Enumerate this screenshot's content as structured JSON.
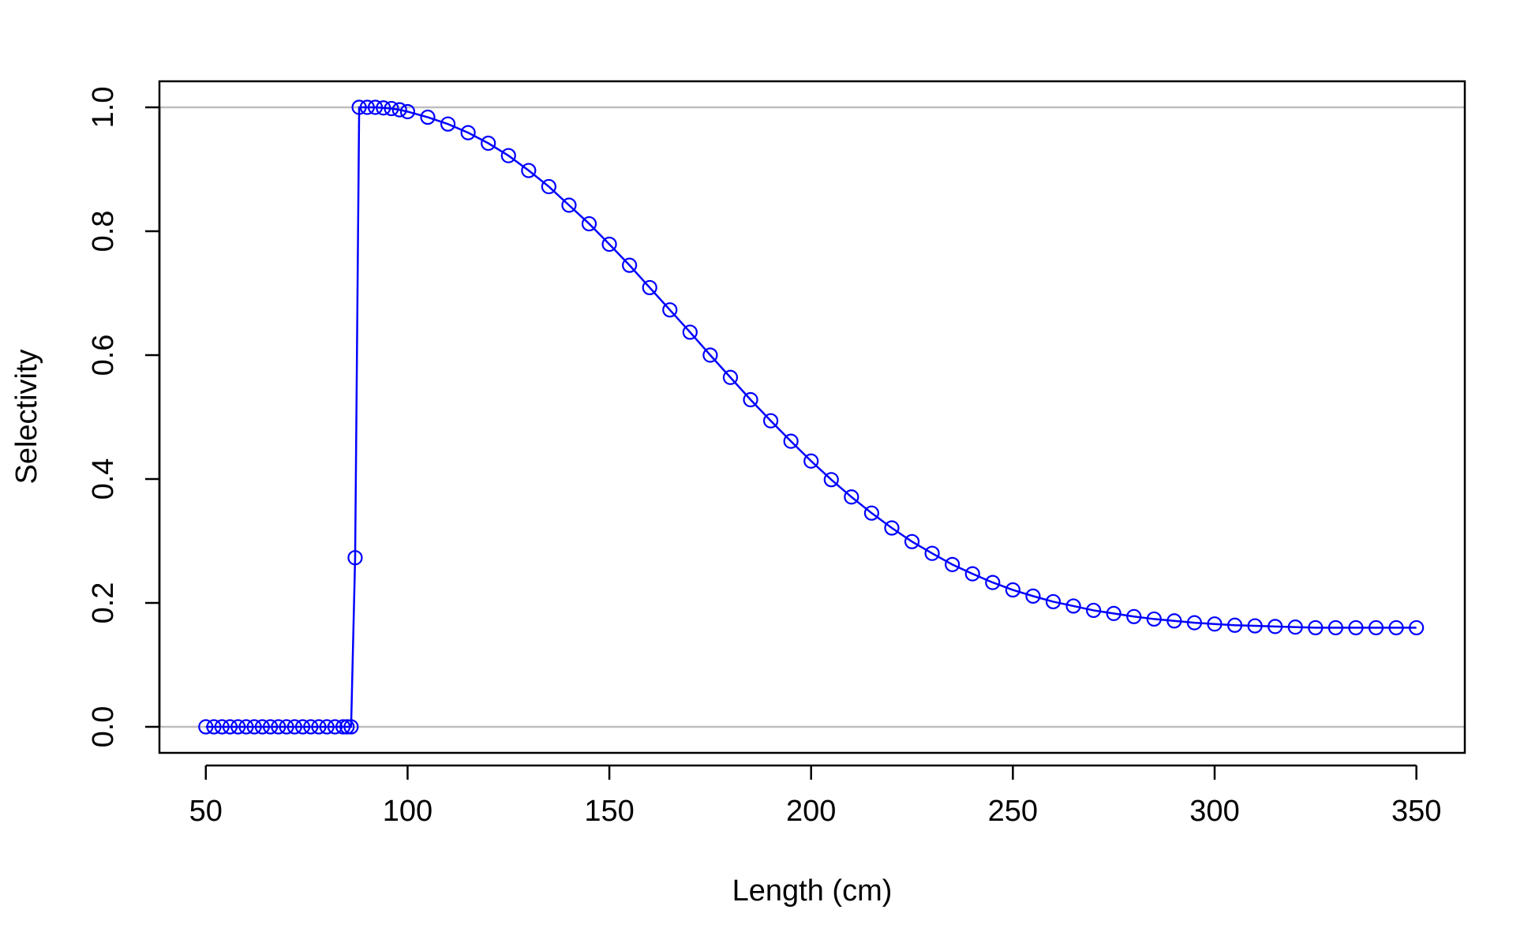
{
  "chart_data": {
    "type": "scatter",
    "title": "",
    "xlabel": "Length (cm)",
    "ylabel": "Selectivity",
    "xlim": [
      38.5,
      362
    ],
    "ylim": [
      -0.042,
      1.042
    ],
    "x_ticks": [
      50,
      100,
      150,
      200,
      250,
      300,
      350
    ],
    "y_ticks": [
      0.0,
      0.2,
      0.4,
      0.6,
      0.8,
      1.0
    ],
    "x_tick_labels": [
      "50",
      "100",
      "150",
      "200",
      "250",
      "300",
      "350"
    ],
    "y_tick_labels": [
      "0.0",
      "0.2",
      "0.4",
      "0.6",
      "0.8",
      "1.0"
    ],
    "reference_lines_y": [
      0.0,
      1.0
    ],
    "grid": false,
    "legend": "none",
    "marker": "open-circle",
    "line_and_points": true,
    "series": [
      {
        "color": "#0000ff",
        "points": [
          [
            50,
            0
          ],
          [
            52,
            0
          ],
          [
            54,
            0
          ],
          [
            56,
            0
          ],
          [
            58,
            0
          ],
          [
            60,
            0
          ],
          [
            62,
            0
          ],
          [
            64,
            0
          ],
          [
            66,
            0
          ],
          [
            68,
            0
          ],
          [
            70,
            0
          ],
          [
            72,
            0
          ],
          [
            74,
            0
          ],
          [
            76,
            0
          ],
          [
            78,
            0
          ],
          [
            80,
            0
          ],
          [
            82,
            0
          ],
          [
            84,
            0
          ],
          [
            85,
            0
          ],
          [
            86,
            0
          ],
          [
            87,
            0.273
          ],
          [
            88,
            1.0
          ],
          [
            90,
            1.0
          ],
          [
            92,
            1.0
          ],
          [
            94,
            0.999
          ],
          [
            96,
            0.998
          ],
          [
            98,
            0.996
          ],
          [
            100,
            0.993
          ],
          [
            105,
            0.984
          ],
          [
            110,
            0.973
          ],
          [
            115,
            0.959
          ],
          [
            120,
            0.942
          ],
          [
            125,
            0.922
          ],
          [
            130,
            0.898
          ],
          [
            135,
            0.872
          ],
          [
            140,
            0.842
          ],
          [
            145,
            0.812
          ],
          [
            150,
            0.779
          ],
          [
            155,
            0.745
          ],
          [
            160,
            0.709
          ],
          [
            165,
            0.673
          ],
          [
            170,
            0.637
          ],
          [
            175,
            0.6
          ],
          [
            180,
            0.564
          ],
          [
            185,
            0.528
          ],
          [
            190,
            0.494
          ],
          [
            195,
            0.461
          ],
          [
            200,
            0.429
          ],
          [
            205,
            0.399
          ],
          [
            210,
            0.371
          ],
          [
            215,
            0.345
          ],
          [
            220,
            0.321
          ],
          [
            225,
            0.299
          ],
          [
            230,
            0.28
          ],
          [
            235,
            0.262
          ],
          [
            240,
            0.247
          ],
          [
            245,
            0.233
          ],
          [
            250,
            0.221
          ],
          [
            255,
            0.211
          ],
          [
            260,
            0.202
          ],
          [
            265,
            0.195
          ],
          [
            270,
            0.188
          ],
          [
            275,
            0.183
          ],
          [
            280,
            0.178
          ],
          [
            285,
            0.174
          ],
          [
            290,
            0.171
          ],
          [
            295,
            0.168
          ],
          [
            300,
            0.166
          ],
          [
            305,
            0.164
          ],
          [
            310,
            0.163
          ],
          [
            315,
            0.162
          ],
          [
            320,
            0.161
          ],
          [
            325,
            0.16
          ],
          [
            330,
            0.16
          ],
          [
            335,
            0.16
          ],
          [
            340,
            0.16
          ],
          [
            345,
            0.16
          ],
          [
            350,
            0.16
          ]
        ]
      }
    ]
  }
}
